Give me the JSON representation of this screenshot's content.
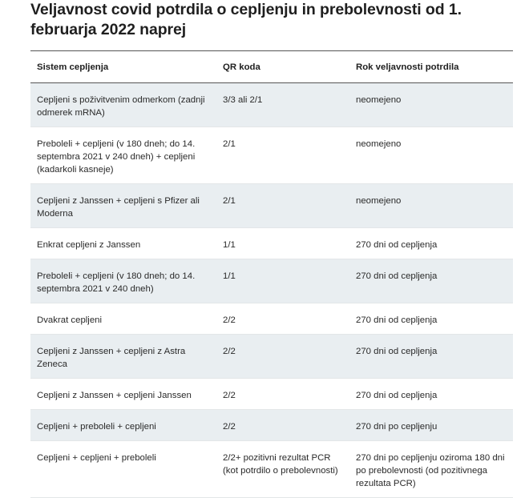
{
  "title": "Veljavnost covid potrdila o cepljenju in prebolevnosti od 1. februarja 2022 naprej",
  "table": {
    "headers": [
      "Sistem cepljenja",
      "QR koda",
      "Rok veljavnosti potrdila"
    ],
    "rows": [
      [
        "Cepljeni s poživitvenim odmerkom (zadnji odmerek mRNA)",
        "3/3 ali 2/1",
        "neomejeno"
      ],
      [
        "Preboleli + cepljeni (v 180 dneh; do 14. septembra 2021 v 240 dneh) + cepljeni (kadarkoli kasneje)",
        "2/1",
        "neomejeno"
      ],
      [
        "Cepljeni z Janssen + cepljeni s Pfizer ali Moderna",
        "2/1",
        "neomejeno"
      ],
      [
        "Enkrat cepljeni z Janssen",
        "1/1",
        "270 dni od cepljenja"
      ],
      [
        "Preboleli + cepljeni (v 180 dneh; do 14. septembra 2021 v 240 dneh)",
        "1/1",
        "270 dni od cepljenja"
      ],
      [
        "Dvakrat cepljeni",
        "2/2",
        "270 dni od cepljenja"
      ],
      [
        "Cepljeni z Janssen + cepljeni z Astra Zeneca",
        "2/2",
        "270 dni od cepljenja"
      ],
      [
        "Cepljeni z Janssen + cepljeni Janssen",
        "2/2",
        "270 dni od cepljenja"
      ],
      [
        "Cepljeni + preboleli + cepljeni",
        "2/2",
        "270 dni po cepljenju"
      ],
      [
        "Cepljeni + cepljeni + preboleli",
        "2/2+ pozitivni rezultat PCR (kot potrdilo o prebolevnosti)",
        "270 dni po cepljenju oziroma 180 dni po prebolevnosti (od pozitivnega rezultata PCR)"
      ]
    ]
  }
}
